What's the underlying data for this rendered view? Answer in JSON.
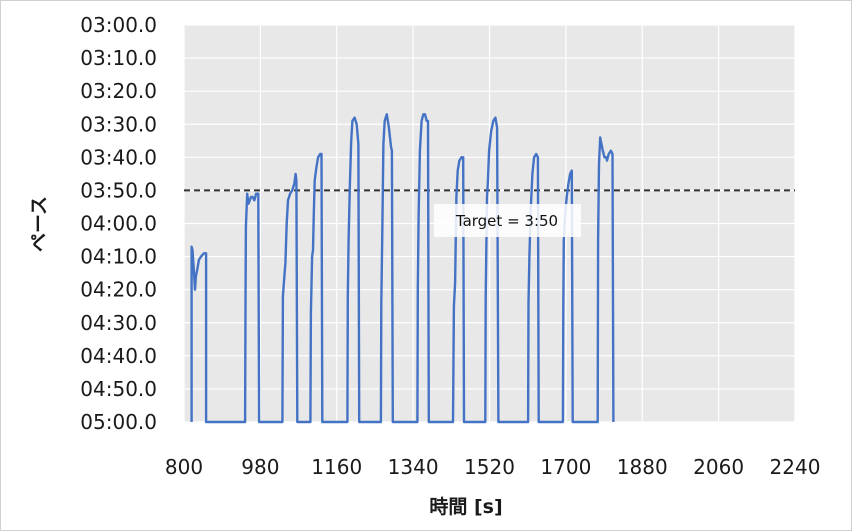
{
  "chart_data": {
    "type": "line",
    "title": "",
    "xlabel": "時間 [s]",
    "ylabel": "ペース",
    "xlim": [
      800,
      2240
    ],
    "x_ticks": [
      "800",
      "980",
      "1160",
      "1340",
      "1520",
      "1700",
      "1880",
      "2060",
      "2240"
    ],
    "ylim_seconds": [
      180,
      300
    ],
    "y_inverted": true,
    "y_ticks": [
      "03:00.0",
      "03:10.0",
      "03:20.0",
      "03:30.0",
      "03:40.0",
      "03:50.0",
      "04:00.0",
      "04:10.0",
      "04:20.0",
      "04:30.0",
      "04:40.0",
      "04:50.0",
      "05:00.0"
    ],
    "grid": true,
    "colors": {
      "series": "#4472c4",
      "plot_background": "#e8e8e8",
      "grid": "#ffffff",
      "reference": "#333333"
    },
    "reference_line": {
      "y": 230,
      "label": "Target = 3:50",
      "style": "dashed"
    },
    "series": [
      {
        "points": [
          [
            818,
            300
          ],
          [
            818,
            247
          ],
          [
            820,
            248
          ],
          [
            823,
            254
          ],
          [
            826,
            260
          ],
          [
            828,
            256
          ],
          [
            831,
            254
          ],
          [
            835,
            251
          ],
          [
            840,
            250
          ],
          [
            847,
            249
          ],
          [
            852,
            249
          ],
          [
            852,
            300
          ],
          [
            944,
            300
          ],
          [
            945,
            265
          ],
          [
            946,
            241
          ],
          [
            949,
            231
          ],
          [
            952,
            234
          ],
          [
            955,
            233
          ],
          [
            958,
            232
          ],
          [
            962,
            232
          ],
          [
            966,
            233
          ],
          [
            970,
            231
          ],
          [
            975,
            231
          ],
          [
            977,
            300
          ],
          [
            1032,
            300
          ],
          [
            1033,
            262
          ],
          [
            1036,
            257
          ],
          [
            1039,
            252
          ],
          [
            1042,
            240
          ],
          [
            1045,
            233
          ],
          [
            1050,
            231
          ],
          [
            1055,
            230
          ],
          [
            1060,
            228
          ],
          [
            1063,
            225
          ],
          [
            1065,
            227
          ],
          [
            1067,
            300
          ],
          [
            1098,
            300
          ],
          [
            1099,
            267
          ],
          [
            1102,
            250
          ],
          [
            1104,
            248
          ],
          [
            1106,
            237
          ],
          [
            1108,
            227
          ],
          [
            1112,
            223
          ],
          [
            1116,
            220
          ],
          [
            1121,
            219
          ],
          [
            1124,
            219
          ],
          [
            1126,
            300
          ],
          [
            1185,
            300
          ],
          [
            1186,
            262
          ],
          [
            1188,
            245
          ],
          [
            1191,
            228
          ],
          [
            1194,
            215
          ],
          [
            1197,
            209
          ],
          [
            1202,
            208
          ],
          [
            1207,
            210
          ],
          [
            1211,
            216
          ],
          [
            1213,
            300
          ],
          [
            1264,
            300
          ],
          [
            1265,
            264
          ],
          [
            1267,
            245
          ],
          [
            1270,
            216
          ],
          [
            1273,
            209
          ],
          [
            1278,
            207
          ],
          [
            1283,
            211
          ],
          [
            1288,
            217
          ],
          [
            1290,
            218
          ],
          [
            1292,
            300
          ],
          [
            1350,
            300
          ],
          [
            1351,
            260
          ],
          [
            1353,
            238
          ],
          [
            1356,
            218
          ],
          [
            1360,
            209
          ],
          [
            1364,
            207
          ],
          [
            1368,
            207
          ],
          [
            1372,
            209
          ],
          [
            1375,
            209
          ],
          [
            1377,
            300
          ],
          [
            1434,
            300
          ],
          [
            1436,
            265
          ],
          [
            1439,
            258
          ],
          [
            1442,
            232
          ],
          [
            1445,
            224
          ],
          [
            1449,
            221
          ],
          [
            1454,
            220
          ],
          [
            1458,
            220
          ],
          [
            1460,
            300
          ],
          [
            1510,
            300
          ],
          [
            1511,
            262
          ],
          [
            1514,
            232
          ],
          [
            1516,
            228
          ],
          [
            1519,
            218
          ],
          [
            1524,
            212
          ],
          [
            1529,
            209
          ],
          [
            1534,
            208
          ],
          [
            1538,
            211
          ],
          [
            1541,
            300
          ],
          [
            1611,
            300
          ],
          [
            1612,
            264
          ],
          [
            1614,
            250
          ],
          [
            1617,
            236
          ],
          [
            1621,
            225
          ],
          [
            1625,
            220
          ],
          [
            1630,
            219
          ],
          [
            1634,
            220
          ],
          [
            1636,
            300
          ],
          [
            1693,
            300
          ],
          [
            1694,
            266
          ],
          [
            1695,
            245
          ],
          [
            1698,
            238
          ],
          [
            1702,
            232
          ],
          [
            1706,
            228
          ],
          [
            1710,
            225
          ],
          [
            1714,
            224
          ],
          [
            1716,
            300
          ],
          [
            1775,
            300
          ],
          [
            1776,
            245
          ],
          [
            1778,
            222
          ],
          [
            1781,
            214
          ],
          [
            1784,
            216
          ],
          [
            1787,
            218
          ],
          [
            1791,
            220
          ],
          [
            1795,
            220
          ],
          [
            1797,
            221
          ],
          [
            1801,
            219
          ],
          [
            1806,
            218
          ],
          [
            1810,
            219
          ],
          [
            1812,
            300
          ]
        ]
      }
    ]
  }
}
